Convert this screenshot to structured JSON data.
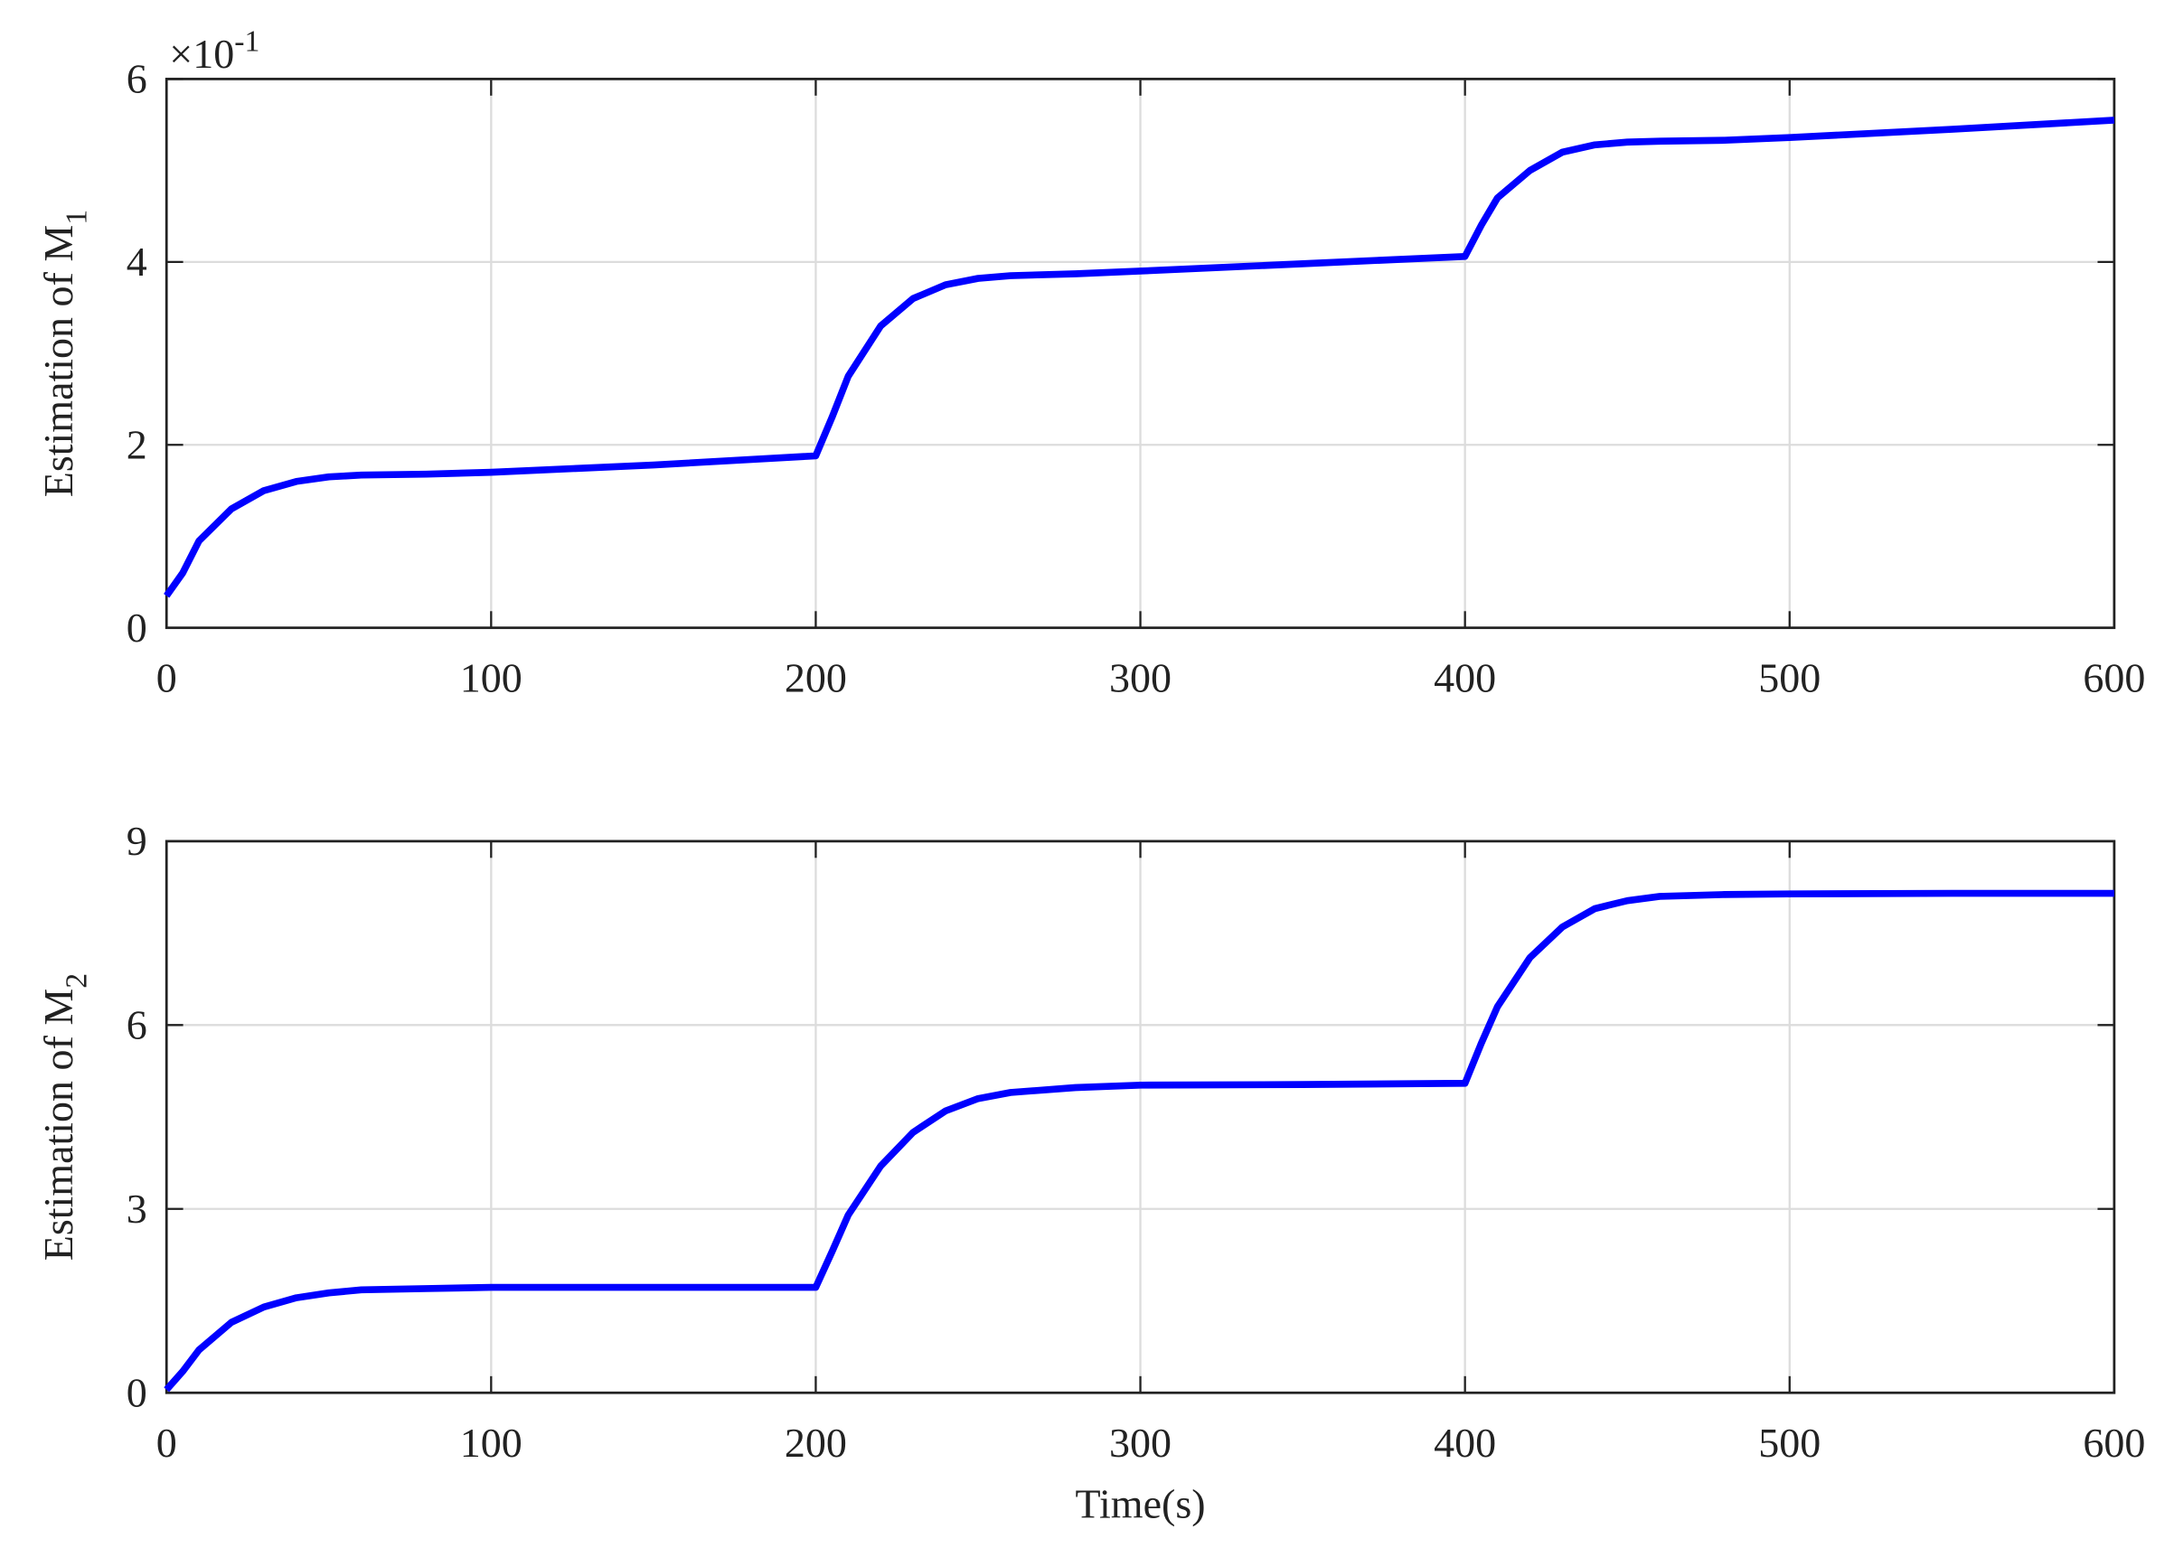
{
  "chart_data": [
    {
      "type": "line",
      "ylabel": "Estimation of M",
      "ylabel_subscript": "1",
      "y_multiplier": {
        "base": "×10",
        "exponent": "-1"
      },
      "x": [
        0,
        5,
        10,
        20,
        30,
        40,
        50,
        60,
        80,
        100,
        150,
        200,
        205,
        210,
        220,
        230,
        240,
        250,
        260,
        280,
        300,
        350,
        400,
        405,
        410,
        420,
        430,
        440,
        450,
        460,
        480,
        500,
        550,
        600
      ],
      "series": [
        {
          "color": "#0000ff",
          "values": [
            0.35,
            0.6,
            0.95,
            1.3,
            1.5,
            1.6,
            1.65,
            1.67,
            1.68,
            1.7,
            1.78,
            1.88,
            2.3,
            2.75,
            3.3,
            3.6,
            3.75,
            3.82,
            3.85,
            3.87,
            3.9,
            3.98,
            4.06,
            4.4,
            4.7,
            5.0,
            5.2,
            5.28,
            5.31,
            5.32,
            5.33,
            5.36,
            5.45,
            5.55
          ]
        }
      ],
      "xlim": [
        0,
        600
      ],
      "xticks": [
        0,
        100,
        200,
        300,
        400,
        500,
        600
      ],
      "ylim": [
        0,
        6
      ],
      "yticks": [
        0,
        2,
        4,
        6
      ],
      "grid": true
    },
    {
      "type": "line",
      "ylabel": "Estimation of M",
      "ylabel_subscript": "2",
      "xlabel": "Time(s)",
      "x": [
        0,
        5,
        10,
        20,
        30,
        40,
        50,
        60,
        80,
        100,
        150,
        200,
        205,
        210,
        220,
        230,
        240,
        250,
        260,
        280,
        300,
        350,
        400,
        405,
        410,
        420,
        430,
        440,
        450,
        460,
        480,
        500,
        550,
        600
      ],
      "series": [
        {
          "color": "#0000ff",
          "values": [
            0.05,
            0.35,
            0.7,
            1.15,
            1.4,
            1.55,
            1.63,
            1.68,
            1.7,
            1.72,
            1.72,
            1.72,
            2.3,
            2.9,
            3.7,
            4.25,
            4.6,
            4.8,
            4.9,
            4.98,
            5.02,
            5.03,
            5.05,
            5.7,
            6.3,
            7.1,
            7.6,
            7.9,
            8.03,
            8.1,
            8.13,
            8.14,
            8.15,
            8.15
          ]
        }
      ],
      "xlim": [
        0,
        600
      ],
      "xticks": [
        0,
        100,
        200,
        300,
        400,
        500,
        600
      ],
      "ylim": [
        0,
        9
      ],
      "yticks": [
        0,
        3,
        6,
        9
      ],
      "grid": true
    }
  ]
}
